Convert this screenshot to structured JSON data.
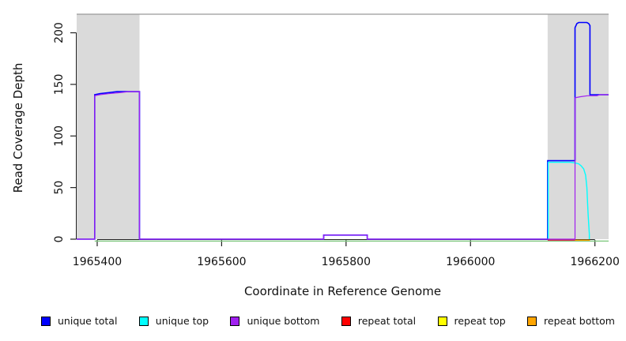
{
  "figure": {
    "xlabel": "Coordinate in Reference Genome",
    "ylabel": "Read Coverage Depth"
  },
  "legend": {
    "items": [
      {
        "label": "unique total",
        "color": "#0000ff"
      },
      {
        "label": "unique top",
        "color": "#00ffff"
      },
      {
        "label": "unique bottom",
        "color": "#a020f0"
      },
      {
        "label": "repeat total",
        "color": "#ff0000"
      },
      {
        "label": "repeat top",
        "color": "#ffff00"
      },
      {
        "label": "repeat bottom",
        "color": "#ffa500"
      }
    ]
  },
  "chart_data": {
    "type": "line",
    "title": "",
    "xlabel": "Coordinate in Reference Genome",
    "ylabel": "Read Coverage Depth",
    "xlim": [
      1965367,
      1966222
    ],
    "ylim": [
      0,
      218
    ],
    "x_ticks": [
      1965400,
      1965600,
      1965800,
      1966000,
      1966200
    ],
    "y_ticks": [
      0,
      50,
      100,
      150,
      200
    ],
    "grid": false,
    "legend_position": "bottom",
    "background_bands": {
      "color": "#dadada",
      "regions": [
        [
          1965367,
          1965468
        ],
        [
          1966124,
          1966222
        ]
      ]
    },
    "top_boundary_line": {
      "color": "#999999",
      "value": 218
    },
    "unlabeled_baseline": {
      "name": "green baseline line",
      "color": "#7fc87f",
      "points": [
        [
          1965396,
          -1.8
        ],
        [
          1966222,
          -1.8
        ]
      ]
    },
    "series": [
      {
        "name": "unique total",
        "color": "#0000ff",
        "width": 1.6,
        "points": [
          [
            1965367,
            0
          ],
          [
            1965396,
            0
          ],
          [
            1965396,
            140
          ],
          [
            1965404,
            141
          ],
          [
            1965418,
            142
          ],
          [
            1965432,
            143
          ],
          [
            1965468,
            143
          ],
          [
            1965468,
            0
          ],
          [
            1965764,
            0
          ],
          [
            1965764,
            4
          ],
          [
            1965834,
            4
          ],
          [
            1965834,
            0
          ],
          [
            1966124,
            0
          ],
          [
            1966124,
            76
          ],
          [
            1966168,
            76
          ],
          [
            1966168,
            205
          ],
          [
            1966171,
            209
          ],
          [
            1966174,
            210
          ],
          [
            1966187,
            210
          ],
          [
            1966190,
            209
          ],
          [
            1966192,
            207
          ],
          [
            1966192,
            140
          ],
          [
            1966222,
            140
          ]
        ]
      },
      {
        "name": "unique top",
        "color": "#00ffff",
        "width": 1.4,
        "points": [
          [
            1966125,
            0
          ],
          [
            1966125,
            74.5
          ],
          [
            1966160,
            74.5
          ],
          [
            1966168,
            74
          ],
          [
            1966174,
            73
          ],
          [
            1966178,
            71
          ],
          [
            1966182,
            68
          ],
          [
            1966185,
            62
          ],
          [
            1966187,
            50
          ],
          [
            1966189,
            25
          ],
          [
            1966191,
            5
          ],
          [
            1966191,
            0
          ]
        ]
      },
      {
        "name": "unique bottom",
        "color": "#a020f0",
        "width": 1.2,
        "points": [
          [
            1965367,
            0
          ],
          [
            1965396,
            0
          ],
          [
            1965396,
            139
          ],
          [
            1965404,
            140
          ],
          [
            1965418,
            141
          ],
          [
            1965436,
            142
          ],
          [
            1965450,
            143
          ],
          [
            1965468,
            143
          ],
          [
            1965468,
            0
          ],
          [
            1965764,
            0
          ],
          [
            1965764,
            4
          ],
          [
            1965834,
            4
          ],
          [
            1965834,
            0
          ],
          [
            1966168,
            0
          ],
          [
            1966168,
            137
          ],
          [
            1966176,
            138
          ],
          [
            1966188,
            139
          ],
          [
            1966203,
            139
          ],
          [
            1966208,
            140
          ],
          [
            1966222,
            140
          ]
        ]
      },
      {
        "name": "repeat total",
        "color": "#e03050",
        "width": 1.4,
        "points": [
          [
            1966124,
            -1
          ],
          [
            1966168,
            -1
          ]
        ]
      },
      {
        "name": "repeat top",
        "color": "#ffff00",
        "width": 1.4,
        "points": []
      },
      {
        "name": "repeat bottom",
        "color": "#ffa500",
        "width": 1.4,
        "points": [
          [
            1966168,
            -1
          ],
          [
            1966192,
            -1
          ]
        ]
      }
    ],
    "notes": "Left gray band: coverage plateau ~143 (unique total+bottom). Small bump of ~4 near 1965800. Right gray band: plateau 76 (total+top), spike to 210 (total), bottom strand rises to ~140."
  }
}
